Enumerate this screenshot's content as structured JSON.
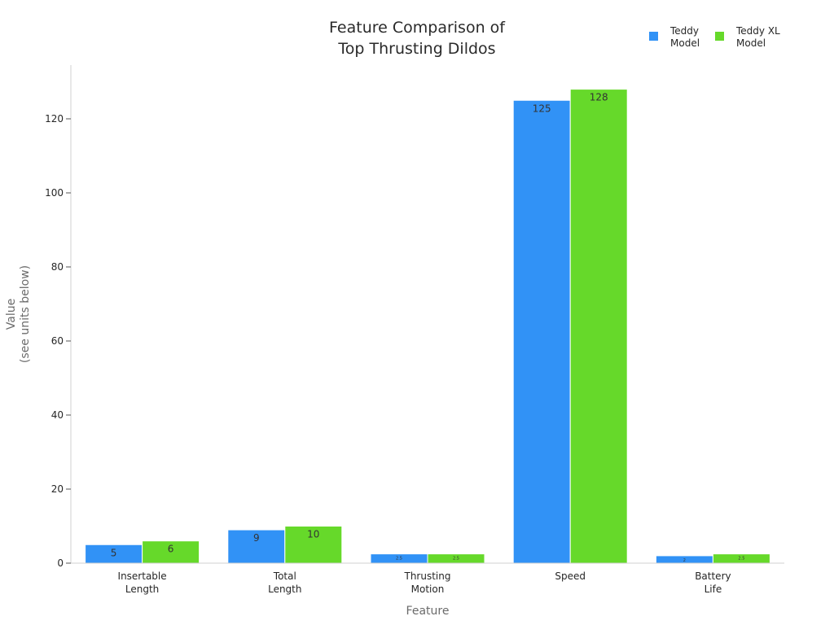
{
  "chart_data": {
    "type": "bar",
    "title": [
      "Feature Comparison of",
      "Top Thrusting Dildos"
    ],
    "xlabel": "Feature",
    "ylabel": [
      "Value",
      "(see units below)"
    ],
    "categories": [
      [
        "Insertable",
        "Length"
      ],
      [
        "Total",
        "Length"
      ],
      [
        "Thrusting",
        "Motion"
      ],
      [
        "Speed"
      ],
      [
        "Battery",
        "Life"
      ]
    ],
    "series": [
      {
        "name": [
          "Teddy",
          "Model"
        ],
        "color": "#3192f6",
        "values": [
          5,
          9,
          2.5,
          125,
          2
        ]
      },
      {
        "name": [
          "Teddy XL",
          "Model"
        ],
        "color": "#66d92a",
        "values": [
          6,
          10,
          2.5,
          128,
          2.5
        ]
      }
    ],
    "data_labels": [
      [
        "5",
        "9",
        "2.5",
        "125",
        "2"
      ],
      [
        "6",
        "10",
        "2.5",
        "128",
        "2.5"
      ]
    ],
    "ylim": [
      0,
      135
    ],
    "yticks": [
      0,
      20,
      40,
      60,
      80,
      100,
      120
    ],
    "ytick_labels": [
      "0",
      "20",
      "40",
      "60",
      "80",
      "100",
      "120"
    ],
    "grid": false,
    "legend_position": "top-right"
  }
}
